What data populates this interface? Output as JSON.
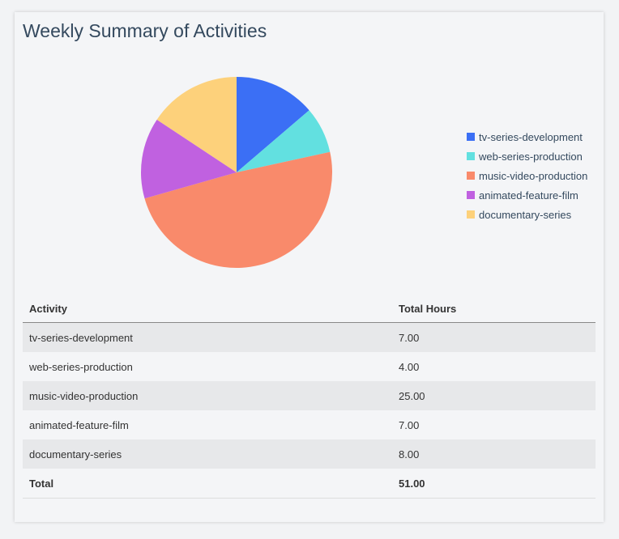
{
  "title": "Weekly Summary of Activities",
  "chart_data": {
    "type": "pie",
    "categories": [
      "tv-series-development",
      "web-series-production",
      "music-video-production",
      "animated-feature-film",
      "documentary-series"
    ],
    "values": [
      7,
      4,
      25,
      7,
      8
    ],
    "colors": [
      "#3b6ff5",
      "#62e0e0",
      "#f98a6b",
      "#c061e0",
      "#fdd17b"
    ],
    "legend_position": "right"
  },
  "table": {
    "headers": [
      "Activity",
      "Total Hours"
    ],
    "rows": [
      [
        "tv-series-development",
        "7.00"
      ],
      [
        "web-series-production",
        "4.00"
      ],
      [
        "music-video-production",
        "25.00"
      ],
      [
        "animated-feature-film",
        "7.00"
      ],
      [
        "documentary-series",
        "8.00"
      ]
    ],
    "total_label": "Total",
    "total_value": "51.00"
  }
}
